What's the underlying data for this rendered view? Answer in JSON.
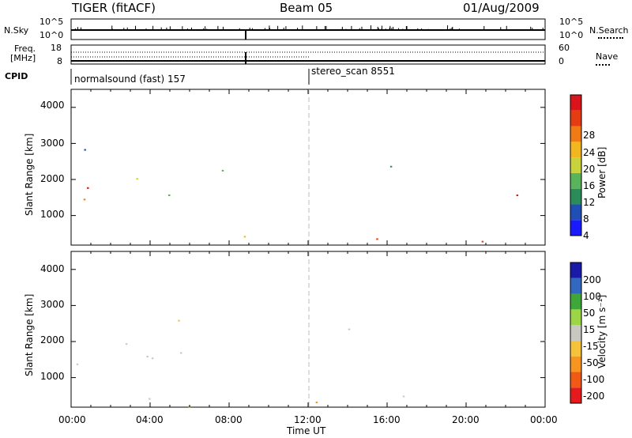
{
  "header": {
    "radar": "TIGER (fitACF)",
    "beam": "Beam 05",
    "date": "01/Aug/2009"
  },
  "panels": {
    "nsky_label": "N.Sky",
    "nsearch_label": "N.Search",
    "freq_label_1": "Freq.",
    "freq_label_2": "[MHz]",
    "nave_label": "Nave",
    "cpid_label": "CPID",
    "nsky_ticks": [
      "10^5",
      "10^0"
    ],
    "nsearch_ticks": [
      "10^5",
      "10^0"
    ],
    "freq_ticks": [
      "18",
      "8"
    ],
    "nave_ticks": [
      "60",
      "0"
    ],
    "cpid_mode_1": "normalsound (fast) 157",
    "cpid_mode_2": "stereo_scan 8551"
  },
  "colors": {
    "power": [
      "#1a1aff",
      "#1f4fb4",
      "#2b8c59",
      "#59b35a",
      "#c8d23c",
      "#f2b71e",
      "#f07a14",
      "#e63c14",
      "#d9141a"
    ],
    "velocity": [
      "#e41a1c",
      "#f05a14",
      "#f7951e",
      "#f6c23a",
      "#c8c8c0",
      "#9cd646",
      "#3fa63a",
      "#3268c0",
      "#1a1aa8"
    ]
  },
  "chart_data": [
    {
      "type": "heatmap",
      "ylabel": "Slant Range [km]",
      "yticks": [
        "4000",
        "3000",
        "2000",
        "1000"
      ],
      "ylim": [
        180,
        4500
      ],
      "colorbar_label": "Power [dB]",
      "colorbar_ticks": [
        "28",
        "24",
        "20",
        "16",
        "12",
        "8",
        "4"
      ]
    },
    {
      "type": "heatmap",
      "xlabel": "Time UT",
      "ylabel": "Slant Range [km]",
      "xticks": [
        "00:00",
        "04:00",
        "08:00",
        "12:00",
        "16:00",
        "20:00",
        "00:00"
      ],
      "yticks": [
        "4000",
        "3000",
        "2000",
        "1000"
      ],
      "ylim": [
        180,
        4500
      ],
      "colorbar_label": "Velocity [m s⁻¹]",
      "colorbar_ticks": [
        "200",
        "100",
        "50",
        "15",
        "-15",
        "-50",
        "-100",
        "-200"
      ]
    }
  ]
}
